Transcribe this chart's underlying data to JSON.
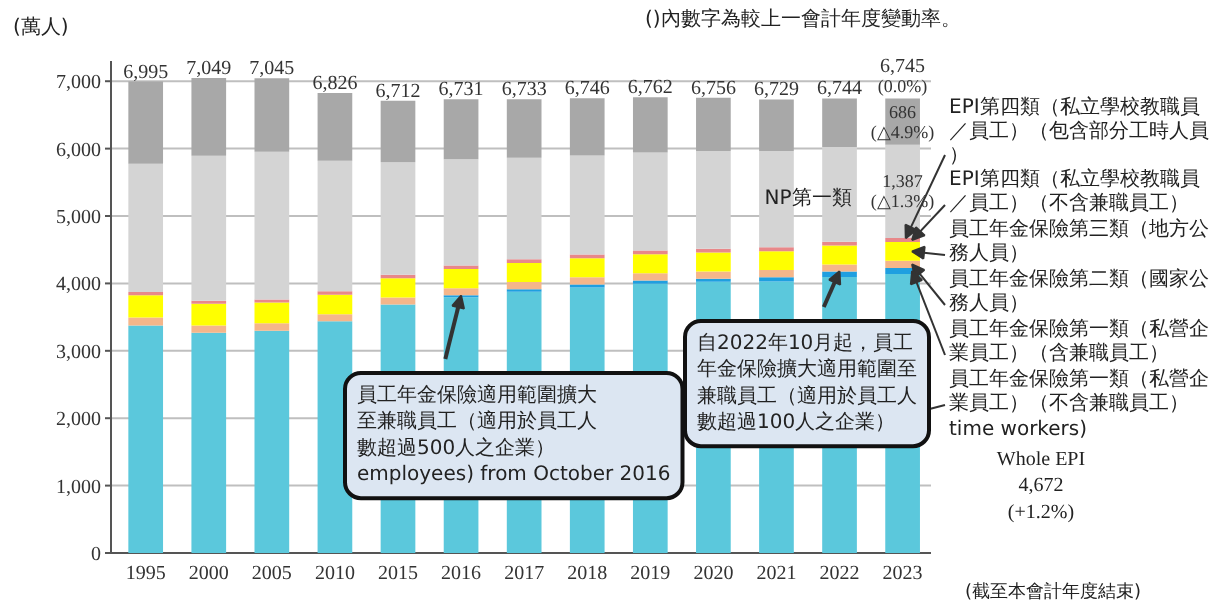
{
  "chart_data": {
    "type": "bar",
    "stacked": true,
    "ylabel": "(萬人)",
    "categories": [
      "1995",
      "2000",
      "2005",
      "2010",
      "2015",
      "2016",
      "2017",
      "2018",
      "2019",
      "2020",
      "2021",
      "2022",
      "2023"
    ],
    "ylim": [
      0,
      7300
    ],
    "yticks": [
      0,
      {
        "value": 1000,
        "label": "1,000"
      },
      {
        "value": 2000,
        "label": "2,000"
      },
      {
        "value": 3000,
        "label": "3,000"
      },
      {
        "value": 4000,
        "label": "4,000"
      },
      {
        "value": 5000,
        "label": "5,000"
      },
      {
        "value": 6000,
        "label": "6,000"
      },
      {
        "value": 7000,
        "label": "7,000"
      }
    ],
    "grid": "y",
    "series": [
      {
        "name": "員工年金保險第一類（私營企業員工）（不含兼職員工）",
        "color": "#5bc8dc",
        "values": [
          3376,
          3267,
          3298,
          3438,
          3687,
          3794,
          3875,
          3941,
          3995,
          4026,
          4027,
          4095,
          4139
        ]
      },
      {
        "name": "員工年金保險第一類（私營企業員工）（含兼職員工）",
        "color": "#1f9fe0",
        "values": [
          null,
          null,
          null,
          null,
          null,
          30,
          40,
          43,
          49,
          45,
          65,
          80,
          91
        ]
      },
      {
        "name": "員工年金保險第二類（國家公務人員）",
        "color": "#f5b68a",
        "values": [
          120,
          110,
          110,
          105,
          105,
          106,
          106,
          106,
          106,
          106,
          106,
          106,
          106
        ]
      },
      {
        "name": "員工年金保險第三類（地方公務人員）",
        "color": "#ffff00",
        "values": [
          330,
          320,
          310,
          290,
          285,
          284,
          283,
          283,
          284,
          282,
          281,
          280,
          278
        ]
      },
      {
        "name": "EPI第四類（私立學校教職員／員工）（不含兼職員工）",
        "color": "#e8888a",
        "values": [
          45,
          45,
          45,
          50,
          52,
          53,
          54,
          55,
          55,
          55,
          56,
          57,
          58
        ]
      },
      {
        "name": "NP第一類",
        "color": "#d4d4d4",
        "values": [
          1904,
          2154,
          2190,
          1938,
          1668,
          1575,
          1505,
          1471,
          1453,
          1449,
          1431,
          1405,
          1387
        ],
        "value_labels": [
          null,
          null,
          null,
          null,
          null,
          null,
          null,
          null,
          null,
          null,
          null,
          null,
          "1,387\n(△1.3%)"
        ]
      },
      {
        "color": "#a8a8a8",
        "values": [
          1220,
          1153,
          1092,
          1005,
          915,
          889,
          870,
          847,
          820,
          793,
          763,
          721,
          686
        ],
        "value_labels": [
          null,
          null,
          null,
          null,
          null,
          null,
          null,
          null,
          null,
          null,
          null,
          null,
          "686\n(△4.9%)"
        ]
      }
    ],
    "totals": [
      "6,995",
      "7,049",
      "7,045",
      "6,826",
      "6,712",
      "6,731",
      "6,733",
      "6,746",
      "6,762",
      "6,756",
      "6,729",
      "6,744",
      "6,745"
    ],
    "annotations": [
      "()內數字為較上一會計年度變動率。",
      {
        "text": "EPI第四類（私立學校教職員／員工）（包含部分工時人員）",
        "x": "2023",
        "y": 4672
      },
      "time workers)",
      "Whole EPI\n4,672\n(+1.2%)",
      "(截至本會計年度結束)",
      {
        "text": "員工年金保險適用範圍擴大至兼職員工（適用於員工人數超過500人之企業）",
        "x": "2016",
        "y": 3820
      },
      "employees) from October 2016",
      {
        "text": "自2022年10月起，員工年金保險擴大適用範圍至兼職員工（適用於員工人數超過100人之企業）",
        "x": "2022",
        "y": 4180
      },
      {
        "text": "(0.0%)",
        "x": "2023",
        "y": 6745
      }
    ]
  }
}
